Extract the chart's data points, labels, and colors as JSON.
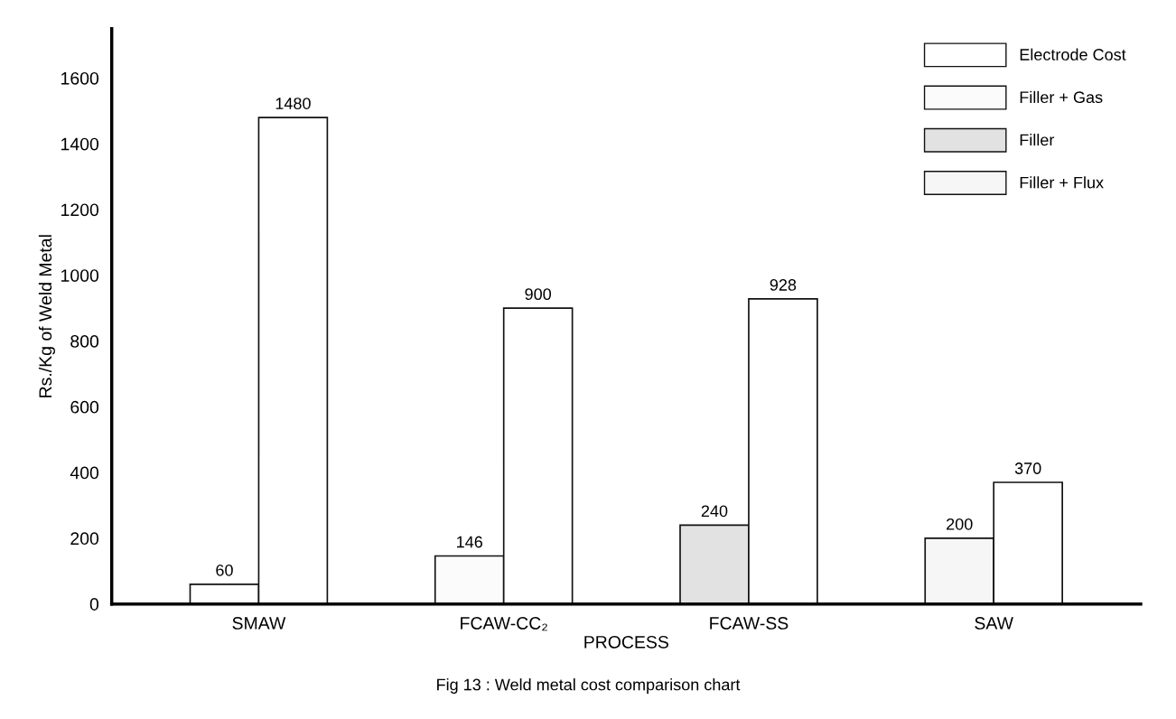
{
  "chart_data": {
    "type": "bar",
    "annotations": [
      "Fig 13 : Weld metal cost comparison chart"
    ],
    "xlabel": "PROCESS",
    "ylabel": "Rs./Kg of Weld Metal",
    "categories": [
      "SMAW",
      "FCAW-CC₂",
      "FCAW-SS",
      "SAW"
    ],
    "series": [
      {
        "name": "Electrode Cost",
        "color": "#ffffff",
        "values": [
          60,
          null,
          null,
          null
        ]
      },
      {
        "name": "Filler + Gas",
        "color": "#fbfbfb",
        "values": [
          null,
          146,
          null,
          null
        ]
      },
      {
        "name": "Filler",
        "color": "#e2e2e2",
        "values": [
          null,
          null,
          240,
          null
        ]
      },
      {
        "name": "Filler + Flux",
        "color": "#f6f6f6",
        "values": [
          null,
          null,
          null,
          200
        ]
      },
      {
        "color": "#ffffff",
        "values": [
          1480,
          900,
          928,
          370
        ]
      }
    ],
    "data_labels": true,
    "ylim": [
      0,
      1750
    ],
    "yticks": [
      0,
      200,
      400,
      600,
      800,
      1000,
      1200,
      1400,
      1600
    ],
    "grid": false,
    "legend": "top right"
  }
}
